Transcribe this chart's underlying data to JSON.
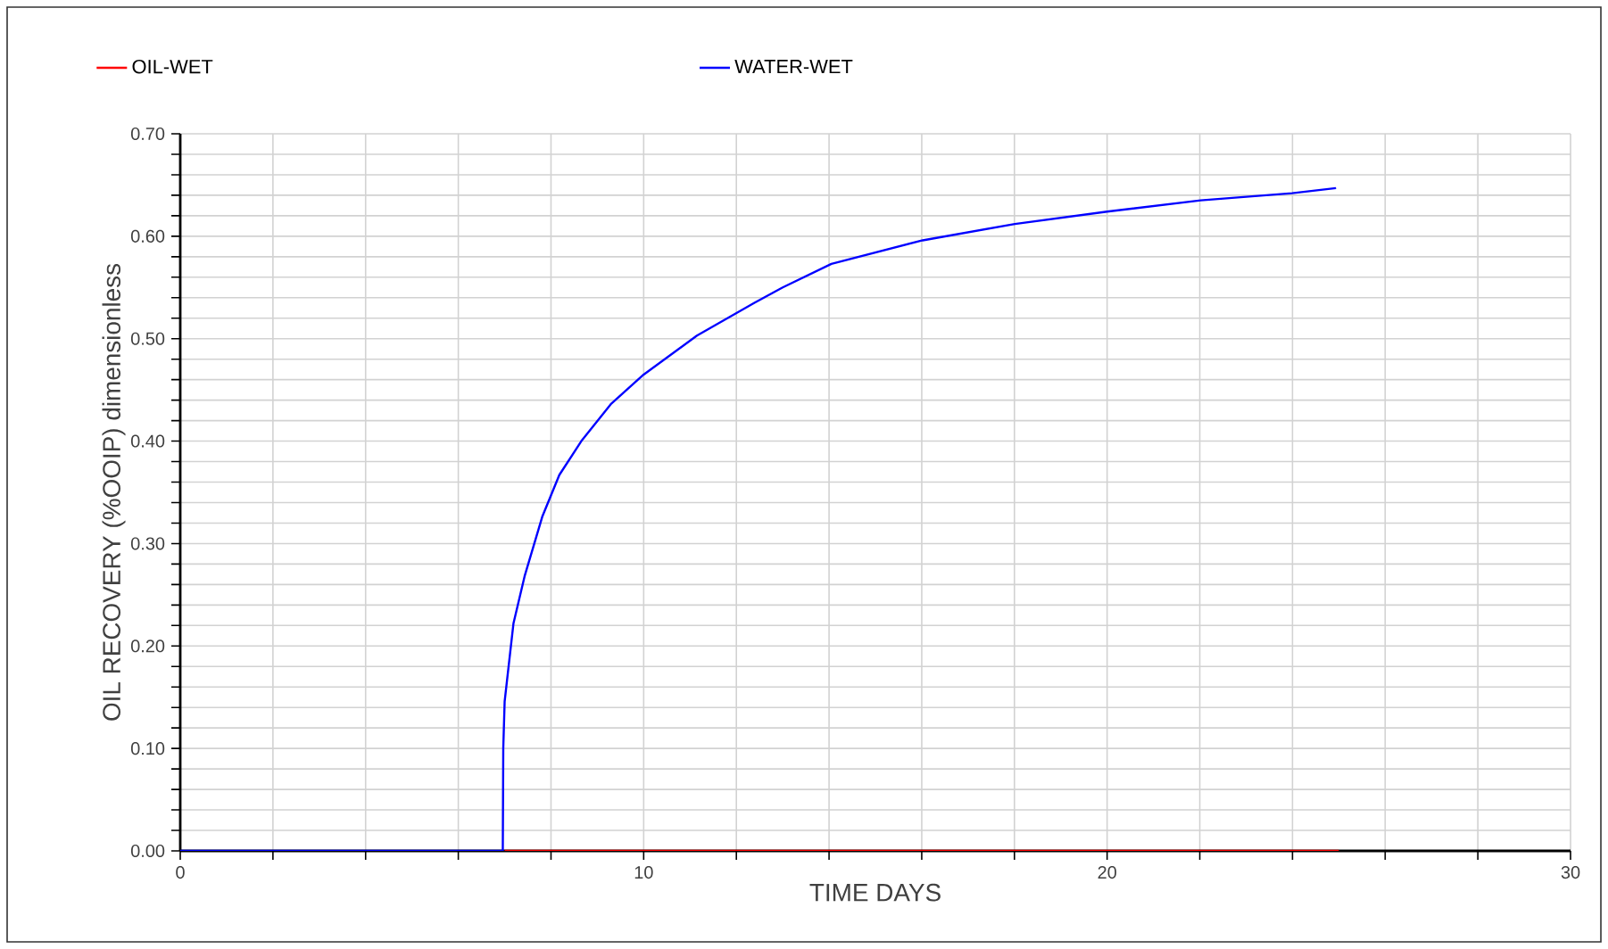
{
  "chart_data": {
    "type": "line",
    "xlabel": "TIME   DAYS",
    "ylabel": "OIL RECOVERY (%OOIP)   dimensionless",
    "xlim": [
      0,
      30
    ],
    "ylim": [
      0,
      0.7
    ],
    "xticks": [
      0,
      {
        "value": 2,
        "label": null
      },
      {
        "value": 4,
        "label": null
      },
      {
        "value": 6,
        "label": null
      },
      {
        "value": 8,
        "label": null
      },
      10,
      {
        "value": 12,
        "label": null
      },
      {
        "value": 14,
        "label": null
      },
      {
        "value": 16,
        "label": null
      },
      {
        "value": 18,
        "label": null
      },
      20,
      {
        "value": 22,
        "label": null
      },
      {
        "value": 24,
        "label": null
      },
      {
        "value": 26,
        "label": null
      },
      {
        "value": 28,
        "label": null
      },
      30
    ],
    "yticks": [
      {
        "value": 0,
        "label": "0.00"
      },
      {
        "value": 0.02,
        "label": null
      },
      {
        "value": 0.04,
        "label": null
      },
      {
        "value": 0.06,
        "label": null
      },
      {
        "value": 0.08,
        "label": null
      },
      {
        "value": 0.1,
        "label": "0.10"
      },
      {
        "value": 0.12,
        "label": null
      },
      {
        "value": 0.14,
        "label": null
      },
      {
        "value": 0.16,
        "label": null
      },
      {
        "value": 0.18,
        "label": null
      },
      {
        "value": 0.2,
        "label": "0.20"
      },
      {
        "value": 0.22,
        "label": null
      },
      {
        "value": 0.24,
        "label": null
      },
      {
        "value": 0.26,
        "label": null
      },
      {
        "value": 0.28,
        "label": null
      },
      {
        "value": 0.3,
        "label": "0.30"
      },
      {
        "value": 0.32,
        "label": null
      },
      {
        "value": 0.34,
        "label": null
      },
      {
        "value": 0.36,
        "label": null
      },
      {
        "value": 0.38,
        "label": null
      },
      {
        "value": 0.4,
        "label": "0.40"
      },
      {
        "value": 0.42,
        "label": null
      },
      {
        "value": 0.44,
        "label": null
      },
      {
        "value": 0.46,
        "label": null
      },
      {
        "value": 0.48,
        "label": null
      },
      {
        "value": 0.5,
        "label": "0.50"
      },
      {
        "value": 0.52,
        "label": null
      },
      {
        "value": 0.54,
        "label": null
      },
      {
        "value": 0.56,
        "label": null
      },
      {
        "value": 0.58,
        "label": null
      },
      {
        "value": 0.6,
        "label": "0.60"
      },
      {
        "value": 0.62,
        "label": null
      },
      {
        "value": 0.64,
        "label": null
      },
      {
        "value": 0.66,
        "label": null
      },
      {
        "value": 0.68,
        "label": null
      },
      {
        "value": 0.7,
        "label": "0.70"
      }
    ],
    "grid": true,
    "legend": "top",
    "marker": "none",
    "line_style": "solid",
    "series": [
      {
        "name": "OIL-WET",
        "color": "#ff0000",
        "x": [
          7,
          25
        ],
        "values": [
          0,
          0
        ]
      },
      {
        "name": "WATER-WET",
        "color": "#0000ff",
        "x": [
          0,
          6.96,
          6.97,
          7.0,
          7.19,
          7.43,
          7.81,
          8.18,
          8.67,
          9.29,
          10,
          11.15,
          12.39,
          13.0,
          14.05,
          16.02,
          18.01,
          20,
          22.02,
          23.99,
          24.94
        ],
        "values": [
          0,
          0,
          0.1,
          0.146,
          0.222,
          0.268,
          0.326,
          0.367,
          0.401,
          0.436,
          0.465,
          0.503,
          0.535,
          0.55,
          0.573,
          0.596,
          0.612,
          0.624,
          0.635,
          0.642,
          0.647
        ]
      }
    ]
  }
}
